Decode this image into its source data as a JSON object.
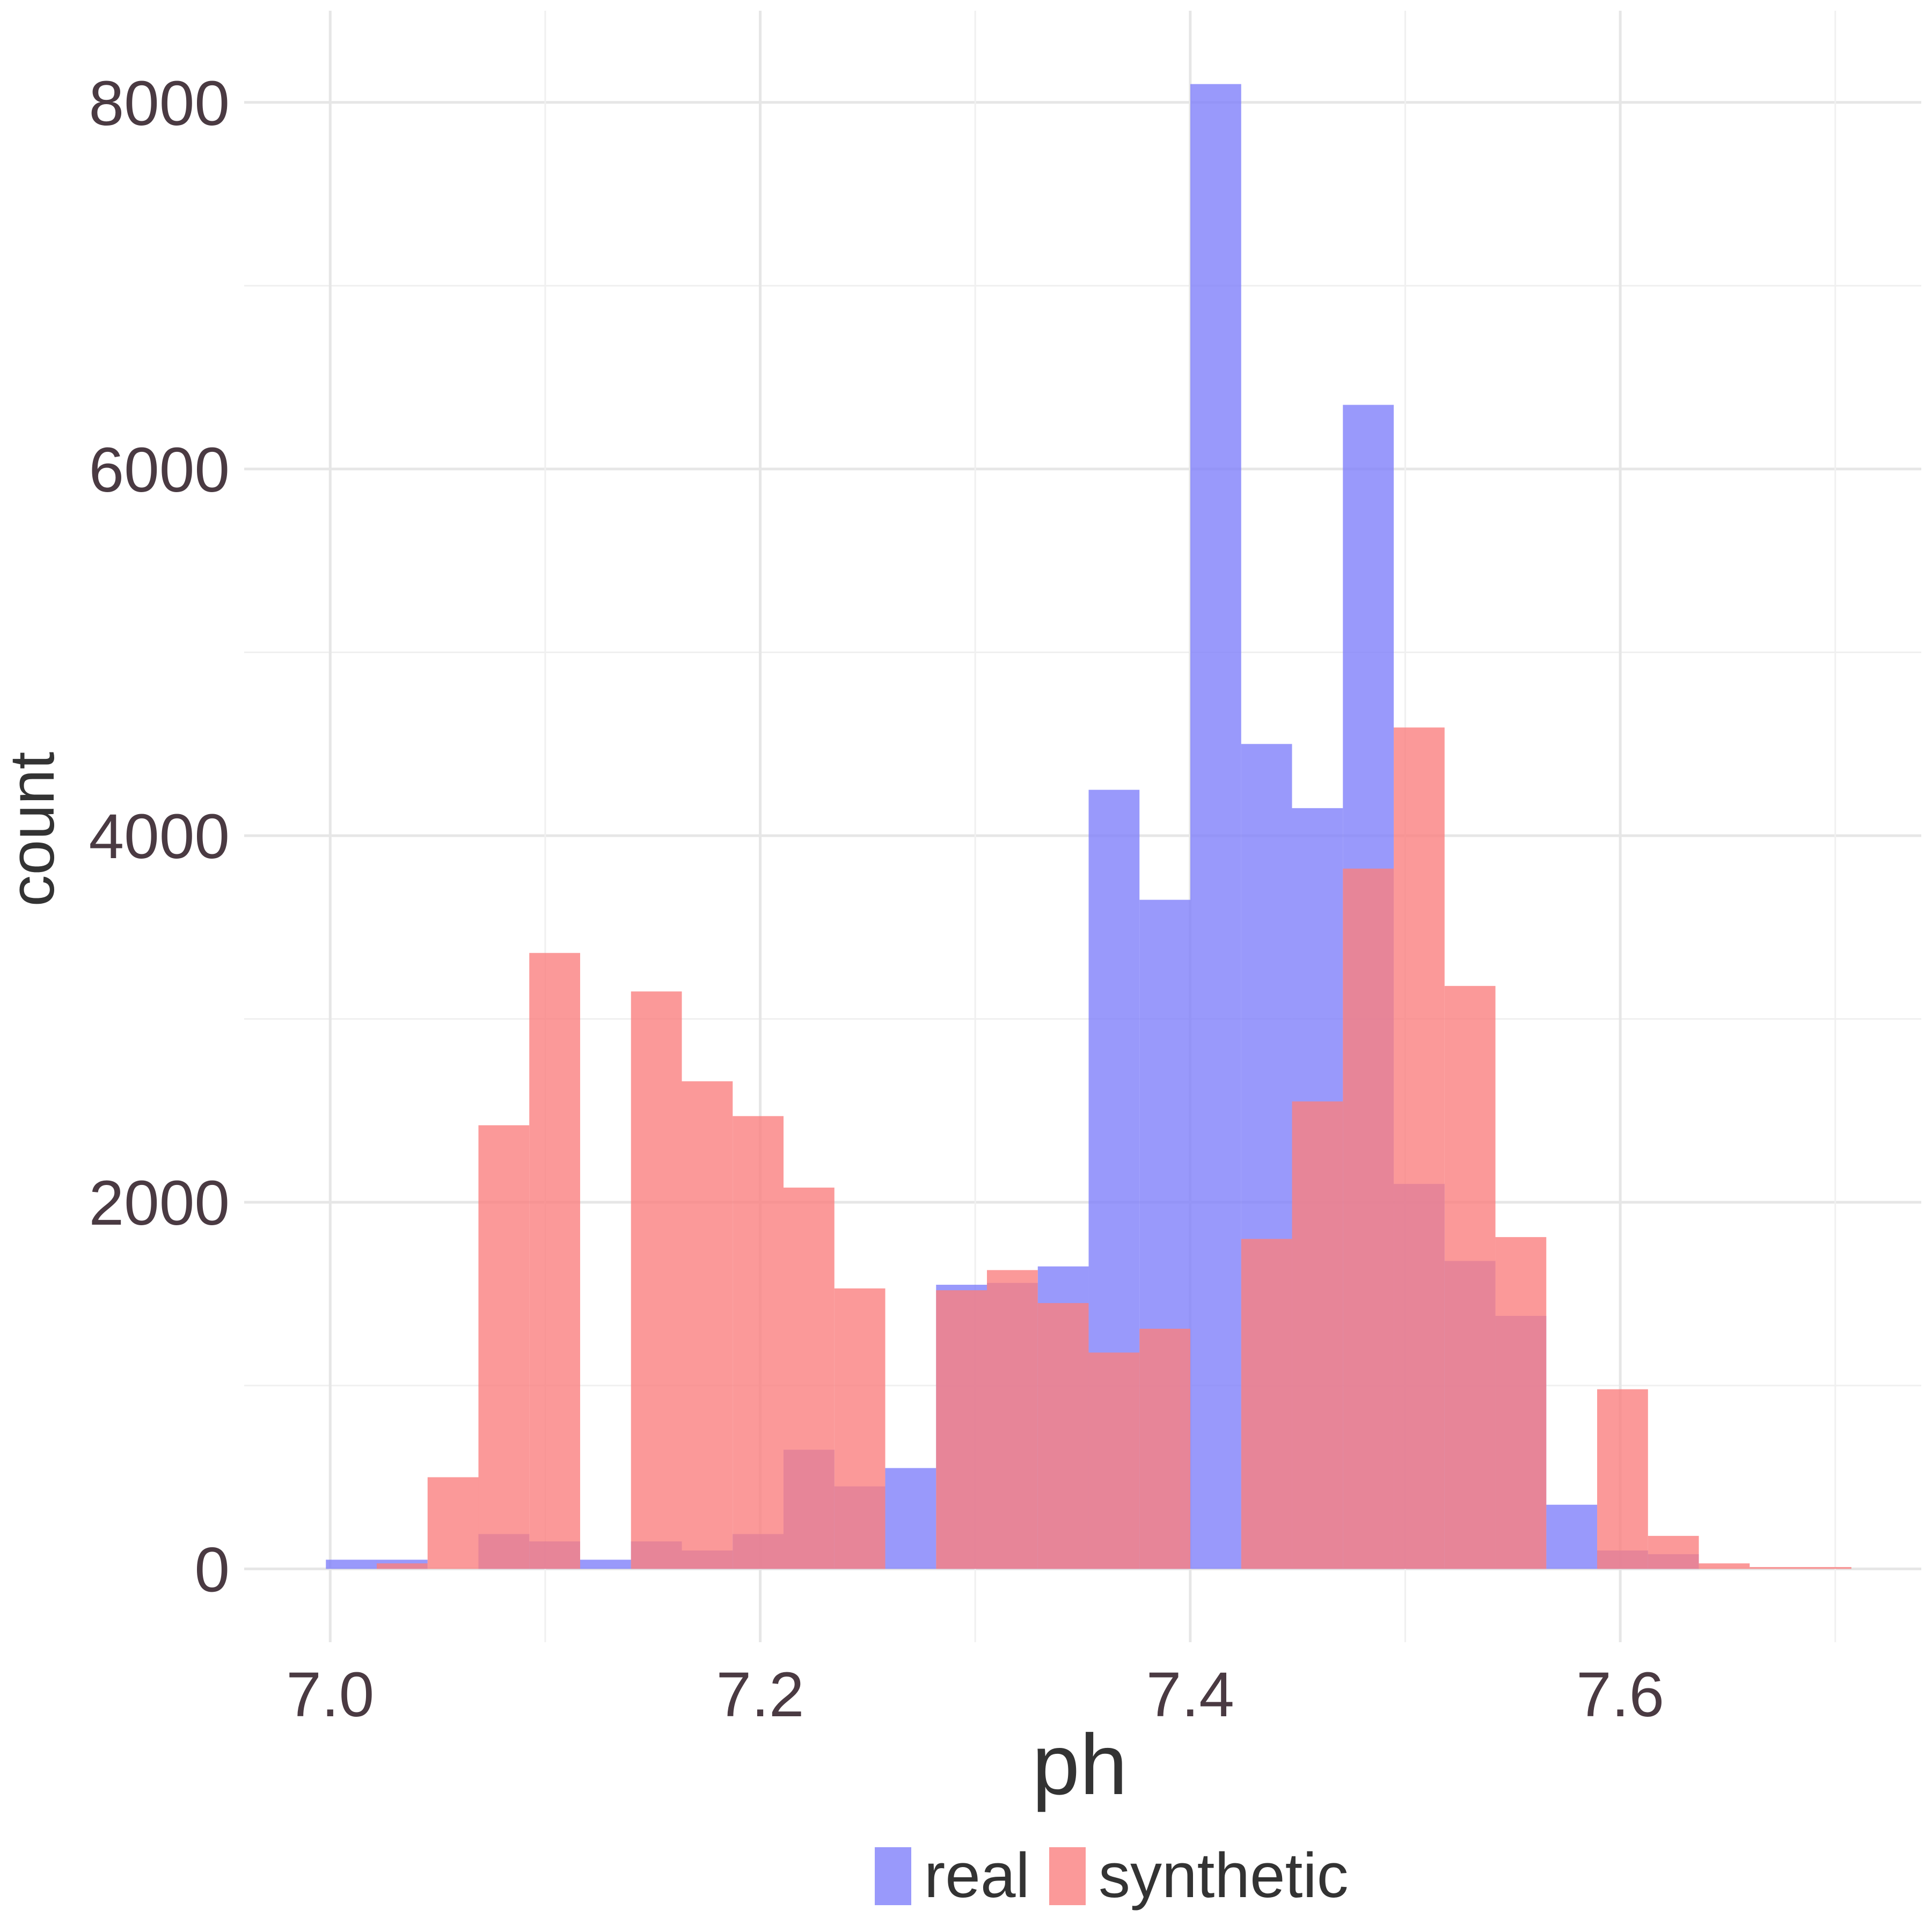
{
  "chart_data": {
    "type": "histogram",
    "xlabel": "ph",
    "ylabel": "count",
    "xlim": [
      6.96,
      7.74
    ],
    "ylim": [
      -400,
      8500
    ],
    "xticks": [
      7.0,
      7.2,
      7.4,
      7.6
    ],
    "xtick_labels": [
      "7.0",
      "7.2",
      "7.4",
      "7.6"
    ],
    "yticks": [
      0,
      2000,
      4000,
      6000,
      8000
    ],
    "ytick_labels": [
      "0",
      "2000",
      "4000",
      "6000",
      "8000"
    ],
    "grid": true,
    "legend_position": "bottom",
    "bins": {
      "first_left": 6.998,
      "width": 0.02365
    },
    "series": [
      {
        "name": "real",
        "color": "#7f7ffa",
        "values": [
          50,
          50,
          0,
          190,
          150,
          50,
          150,
          100,
          190,
          650,
          450,
          550,
          1550,
          1560,
          1650,
          4250,
          3650,
          8100,
          4500,
          4150,
          6350,
          2100,
          1680,
          1380,
          350,
          100,
          80,
          0,
          0,
          0
        ]
      },
      {
        "name": "synthetic",
        "color": "#fa7f7f",
        "values": [
          0,
          30,
          500,
          2420,
          3360,
          0,
          3150,
          2660,
          2470,
          2080,
          1530,
          0,
          1520,
          1630,
          1450,
          1180,
          1310,
          0,
          1800,
          2550,
          3820,
          4590,
          3180,
          1810,
          0,
          980,
          180,
          30,
          10,
          10
        ]
      }
    ]
  }
}
